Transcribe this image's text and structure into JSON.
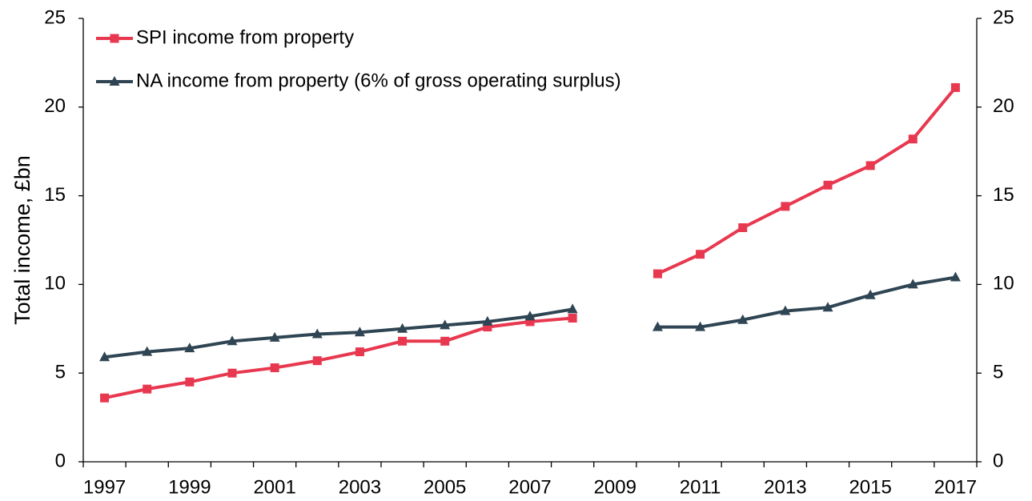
{
  "chart_data": {
    "type": "line",
    "y_label": "Total income, £bn",
    "categories": [
      "1997",
      null,
      "1999",
      null,
      "2001",
      null,
      "2003",
      null,
      "2005",
      null,
      "2007",
      null,
      "2009",
      null,
      "2011",
      null,
      "2013",
      null,
      "2015",
      null,
      "2017"
    ],
    "series": [
      {
        "name": "SPI income from property",
        "color": "#e8384f",
        "marker": "square",
        "values": [
          3.6,
          4.1,
          4.5,
          5.0,
          5.3,
          5.7,
          6.2,
          6.8,
          6.8,
          7.6,
          7.9,
          8.1,
          null,
          10.6,
          11.7,
          13.2,
          14.4,
          15.6,
          16.7,
          18.2,
          21.1
        ]
      },
      {
        "name": "NA income from property (6% of gross operating surplus)",
        "color": "#2f4553",
        "marker": "triangle",
        "values": [
          5.9,
          6.2,
          6.4,
          6.8,
          7.0,
          7.2,
          7.3,
          7.5,
          7.7,
          7.9,
          8.2,
          8.6,
          null,
          7.6,
          7.6,
          8.0,
          8.5,
          8.7,
          9.4,
          10.0,
          10.4
        ]
      }
    ],
    "ylim": [
      0,
      25
    ],
    "yticks": [
      0,
      5,
      10,
      15,
      20,
      25
    ],
    "y2lim": [
      0,
      25
    ],
    "y2ticks": [
      0,
      5,
      10,
      15,
      20,
      25
    ],
    "legend": "upper-left"
  }
}
